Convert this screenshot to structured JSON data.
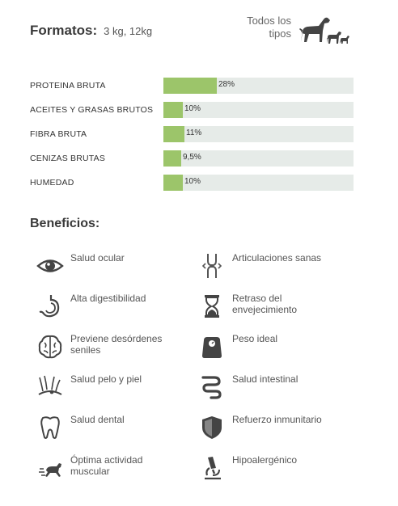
{
  "formats": {
    "title": "Formatos:",
    "value": "3 kg, 12kg"
  },
  "dog_types": {
    "line1": "Todos los",
    "line2": "tipos",
    "icon": "dogs-icon"
  },
  "nutrition": [
    {
      "label": "PROTEINA BRUTA",
      "value_text": "28%",
      "percent": 28
    },
    {
      "label": "ACEITES Y GRASAS BRUTOS",
      "value_text": "10%",
      "percent": 10
    },
    {
      "label": "FIBRA BRUTA",
      "value_text": "11%",
      "percent": 11
    },
    {
      "label": "CENIZAS BRUTAS",
      "value_text": "9,5%",
      "percent": 9.5
    },
    {
      "label": "HUMEDAD",
      "value_text": "10%",
      "percent": 10
    }
  ],
  "colors": {
    "bar_fill": "#9cc56a",
    "bar_track": "#e6ebe8",
    "icon": "#444444"
  },
  "benefits_title": "Beneficios:",
  "benefits": [
    {
      "label": "Salud ocular",
      "icon": "eye-icon"
    },
    {
      "label": "Articulaciones sanas",
      "icon": "joint-icon"
    },
    {
      "label": "Alta digestibilidad",
      "icon": "stomach-icon"
    },
    {
      "label": "Retraso del envejecimiento",
      "icon": "hourglass-icon"
    },
    {
      "label": "Previene desórdenes seniles",
      "icon": "brain-icon"
    },
    {
      "label": "Peso ideal",
      "icon": "scale-icon"
    },
    {
      "label": "Salud pelo y piel",
      "icon": "hair-skin-icon"
    },
    {
      "label": "Salud intestinal",
      "icon": "intestine-icon"
    },
    {
      "label": "Salud dental",
      "icon": "tooth-icon"
    },
    {
      "label": "Refuerzo inmunitario",
      "icon": "shield-icon"
    },
    {
      "label": "Óptima actividad muscular",
      "icon": "running-dog-icon"
    },
    {
      "label": "Hipoalergénico",
      "icon": "microscope-icon"
    }
  ]
}
